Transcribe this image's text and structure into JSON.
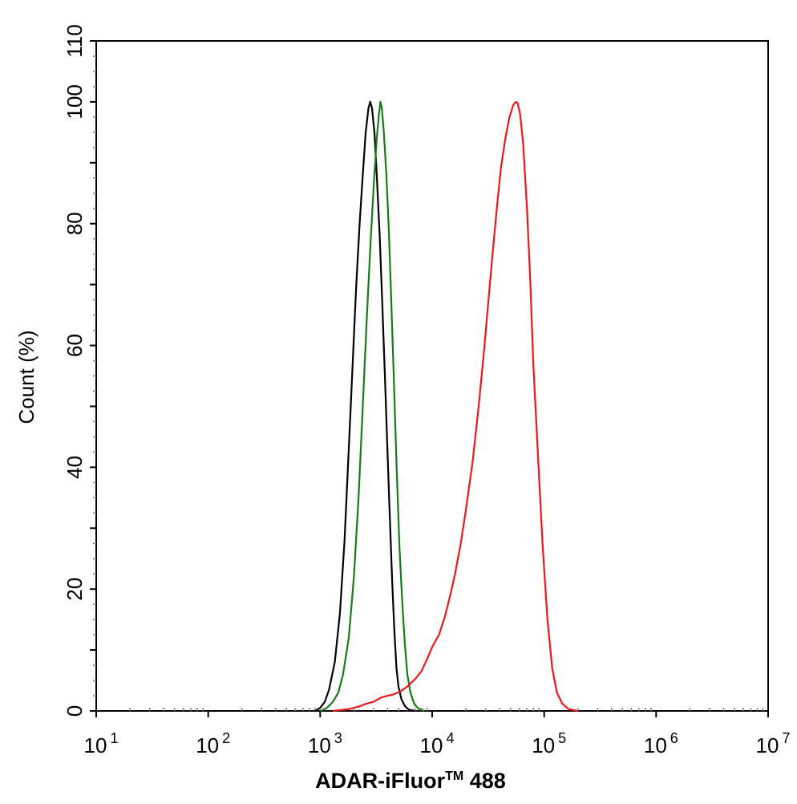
{
  "chart_data": {
    "type": "line",
    "title": "",
    "xlabel": "ADAR-iFluor",
    "xlabel_tm": "TM",
    "xlabel_suffix": " 488",
    "ylabel": "Count  (%)",
    "x_scale": "log",
    "xlim": [
      10,
      10000000
    ],
    "ylim": [
      0,
      110
    ],
    "x_ticks": [
      {
        "value": 10,
        "base": "10",
        "exp": "1"
      },
      {
        "value": 100,
        "base": "10",
        "exp": "2"
      },
      {
        "value": 1000,
        "base": "10",
        "exp": "3"
      },
      {
        "value": 10000,
        "base": "10",
        "exp": "4"
      },
      {
        "value": 100000,
        "base": "10",
        "exp": "5"
      },
      {
        "value": 1000000,
        "base": "10",
        "exp": "6"
      },
      {
        "value": 10000000,
        "base": "10",
        "exp": "7"
      }
    ],
    "y_ticks": [
      0,
      20,
      40,
      60,
      80,
      100,
      110
    ],
    "grid": false,
    "series": [
      {
        "color": "#000000",
        "points": [
          [
            900,
            0
          ],
          [
            1000,
            0.5
          ],
          [
            1100,
            1.5
          ],
          [
            1200,
            3.5
          ],
          [
            1350,
            8
          ],
          [
            1500,
            16
          ],
          [
            1650,
            28
          ],
          [
            1800,
            43
          ],
          [
            1950,
            57
          ],
          [
            2100,
            70
          ],
          [
            2250,
            80
          ],
          [
            2400,
            88
          ],
          [
            2550,
            95
          ],
          [
            2700,
            99
          ],
          [
            2800,
            100
          ],
          [
            2900,
            99
          ],
          [
            3050,
            95
          ],
          [
            3200,
            88
          ],
          [
            3400,
            78
          ],
          [
            3600,
            66
          ],
          [
            3800,
            54
          ],
          [
            4000,
            42
          ],
          [
            4200,
            31
          ],
          [
            4400,
            21
          ],
          [
            4600,
            13
          ],
          [
            4800,
            7
          ],
          [
            5000,
            4
          ],
          [
            5300,
            2
          ],
          [
            5700,
            0.8
          ],
          [
            6200,
            0.2
          ],
          [
            7000,
            0
          ]
        ]
      },
      {
        "color": "#1a7a1a",
        "points": [
          [
            1000,
            0
          ],
          [
            1150,
            0.5
          ],
          [
            1300,
            1.5
          ],
          [
            1450,
            3
          ],
          [
            1600,
            6
          ],
          [
            1800,
            12
          ],
          [
            2000,
            22
          ],
          [
            2200,
            35
          ],
          [
            2400,
            50
          ],
          [
            2600,
            64
          ],
          [
            2800,
            76
          ],
          [
            3000,
            86
          ],
          [
            3200,
            94
          ],
          [
            3350,
            98
          ],
          [
            3450,
            100
          ],
          [
            3550,
            99
          ],
          [
            3700,
            95
          ],
          [
            3900,
            88
          ],
          [
            4100,
            79
          ],
          [
            4300,
            68
          ],
          [
            4500,
            57
          ],
          [
            4700,
            46
          ],
          [
            4900,
            36
          ],
          [
            5100,
            27
          ],
          [
            5400,
            18
          ],
          [
            5700,
            11
          ],
          [
            6000,
            6
          ],
          [
            6400,
            3
          ],
          [
            6900,
            1.2
          ],
          [
            7500,
            0.4
          ],
          [
            8500,
            0
          ]
        ]
      },
      {
        "color": "#e8191c",
        "points": [
          [
            1300,
            0
          ],
          [
            1800,
            0.3
          ],
          [
            2200,
            0.7
          ],
          [
            2600,
            1.2
          ],
          [
            3000,
            1.5
          ],
          [
            3500,
            2.2
          ],
          [
            4000,
            2.5
          ],
          [
            4500,
            2.7
          ],
          [
            5200,
            3.2
          ],
          [
            6000,
            4
          ],
          [
            7000,
            5.2
          ],
          [
            8000,
            6.5
          ],
          [
            9000,
            8.5
          ],
          [
            10000,
            10.5
          ],
          [
            11500,
            12.5
          ],
          [
            13000,
            15.5
          ],
          [
            14500,
            19
          ],
          [
            16000,
            22.5
          ],
          [
            18000,
            27.5
          ],
          [
            20000,
            33
          ],
          [
            23000,
            41
          ],
          [
            26000,
            50
          ],
          [
            29000,
            59
          ],
          [
            32000,
            68
          ],
          [
            35000,
            76
          ],
          [
            38000,
            83
          ],
          [
            41000,
            89
          ],
          [
            45000,
            94
          ],
          [
            49000,
            97.5
          ],
          [
            53000,
            99.5
          ],
          [
            56000,
            100
          ],
          [
            58000,
            99.8
          ],
          [
            61000,
            98
          ],
          [
            65000,
            93
          ],
          [
            70000,
            83
          ],
          [
            75000,
            71
          ],
          [
            80000,
            57
          ],
          [
            88000,
            42
          ],
          [
            97000,
            27
          ],
          [
            107000,
            15
          ],
          [
            118000,
            7
          ],
          [
            130000,
            3
          ],
          [
            145000,
            1.2
          ],
          [
            165000,
            0.3
          ],
          [
            200000,
            0
          ]
        ]
      }
    ]
  }
}
